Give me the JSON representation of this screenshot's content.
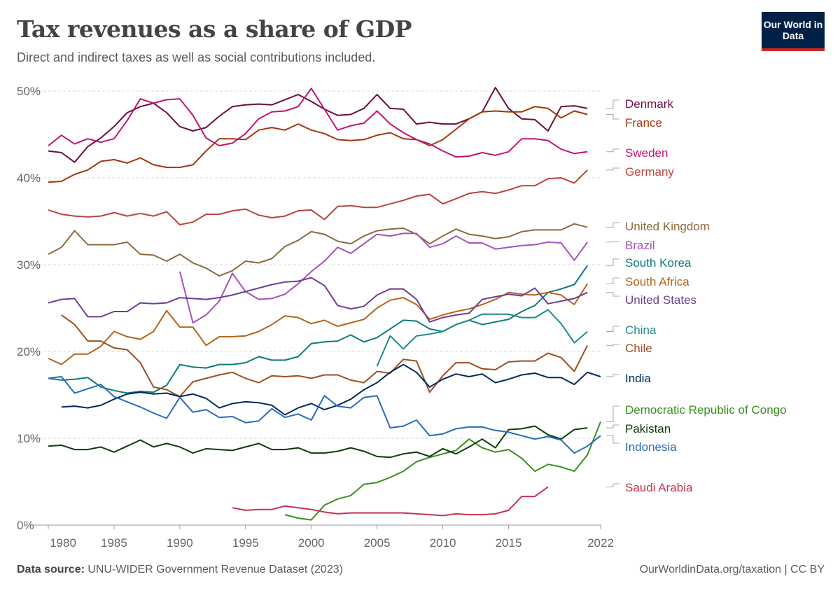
{
  "header": {
    "title": "Tax revenues as a share of GDP",
    "subtitle": "Direct and indirect taxes as well as social contributions included.",
    "logo_text": "Our World in Data"
  },
  "footer": {
    "source_label": "Data source:",
    "source_text": "UNU-WIDER Government Revenue Dataset (2023)",
    "url_license": "OurWorldinData.org/taxation | CC BY"
  },
  "chart_data": {
    "type": "line",
    "title": "Tax revenues as a share of GDP",
    "subtitle": "Direct and indirect taxes as well as social contributions included.",
    "xlim": [
      1980,
      2022
    ],
    "ylim": [
      0,
      50
    ],
    "x_ticks": [
      "1980",
      "1985",
      "1990",
      "1995",
      "2000",
      "2005",
      "2010",
      "2015",
      "2022"
    ],
    "y_ticks": [
      "0%",
      "10%",
      "20%",
      "30%",
      "40%",
      "50%"
    ],
    "grid": "horizontal dashed",
    "legend": "right, inline labels",
    "series": [
      {
        "name": "Denmark",
        "color": "#6b0d3f",
        "start_year": 1980,
        "values": [
          43.1,
          42.9,
          41.8,
          43.6,
          44.6,
          45.9,
          47.5,
          48.2,
          48.6,
          47.5,
          45.9,
          45.4,
          45.8,
          47.1,
          48.2,
          48.4,
          48.5,
          48.4,
          49.0,
          49.6,
          48.8,
          47.9,
          47.2,
          47.3,
          48.0,
          49.6,
          48.0,
          47.9,
          46.2,
          46.4,
          46.2,
          46.2,
          46.8,
          47.6,
          50.4,
          48.0,
          46.8,
          46.7,
          45.4,
          48.2,
          48.3,
          48.0
        ]
      },
      {
        "name": "France",
        "color": "#a2370c",
        "start_year": 1980,
        "values": [
          39.5,
          39.6,
          40.4,
          40.9,
          41.9,
          42.1,
          41.7,
          42.3,
          41.5,
          41.2,
          41.2,
          41.5,
          43.1,
          44.5,
          44.5,
          44.4,
          45.5,
          45.8,
          45.5,
          46.2,
          45.5,
          45.1,
          44.4,
          44.3,
          44.4,
          44.9,
          45.2,
          44.5,
          44.4,
          43.7,
          44.4,
          45.6,
          46.8,
          47.6,
          47.7,
          47.6,
          47.6,
          48.2,
          48.0,
          46.9,
          47.7,
          47.3
        ]
      },
      {
        "name": "Sweden",
        "color": "#c1156f",
        "start_year": 1980,
        "values": [
          43.7,
          44.9,
          43.9,
          44.5,
          44.1,
          44.5,
          46.6,
          49.1,
          48.6,
          49.0,
          49.1,
          47.2,
          44.6,
          43.7,
          44.0,
          45.1,
          46.8,
          47.6,
          47.7,
          48.2,
          50.3,
          47.9,
          45.5,
          46.0,
          46.3,
          47.7,
          46.2,
          45.2,
          44.4,
          43.9,
          43.1,
          42.4,
          42.5,
          42.9,
          42.6,
          43.0,
          44.5,
          44.5,
          44.3,
          43.3,
          42.8,
          43.0
        ]
      },
      {
        "name": "Germany",
        "color": "#b9433c",
        "start_year": 1980,
        "values": [
          36.3,
          35.8,
          35.6,
          35.5,
          35.6,
          36.0,
          35.6,
          35.9,
          35.6,
          36.1,
          34.6,
          34.9,
          35.8,
          35.8,
          36.2,
          36.4,
          35.7,
          35.4,
          35.6,
          36.2,
          36.3,
          35.2,
          36.7,
          36.8,
          36.6,
          36.6,
          37.0,
          37.4,
          37.9,
          38.1,
          37.0,
          37.6,
          38.2,
          38.4,
          38.2,
          38.6,
          39.1,
          39.1,
          39.9,
          40.0,
          39.4,
          40.9
        ]
      },
      {
        "name": "United Kingdom",
        "color": "#8c6a3a",
        "start_year": 1980,
        "values": [
          31.2,
          32.0,
          33.9,
          32.3,
          32.3,
          32.3,
          32.6,
          31.2,
          31.1,
          30.4,
          31.2,
          30.2,
          29.6,
          28.7,
          29.3,
          30.4,
          30.2,
          30.7,
          32.1,
          32.8,
          33.8,
          33.5,
          32.7,
          32.4,
          33.3,
          33.9,
          34.1,
          34.2,
          33.5,
          32.4,
          33.3,
          34.1,
          33.5,
          33.3,
          33.0,
          33.2,
          33.8,
          34.0,
          34.0,
          34.0,
          34.7,
          34.3
        ]
      },
      {
        "name": "Brazil",
        "color": "#a652ba",
        "start_year": 1990,
        "values": [
          29.2,
          23.3,
          24.2,
          25.8,
          29.0,
          26.9,
          26.0,
          26.1,
          26.6,
          27.8,
          29.2,
          30.4,
          32.0,
          31.3,
          32.4,
          33.5,
          33.3,
          33.6,
          33.6,
          32.0,
          32.4,
          33.3,
          32.5,
          32.5,
          31.8,
          32.0,
          32.2,
          32.3,
          32.6,
          32.5,
          30.5,
          32.6
        ]
      },
      {
        "name": "South Korea",
        "color": "#0e7a78",
        "start_year": 1980,
        "values": [
          16.9,
          16.7,
          16.8,
          17.0,
          15.9,
          15.5,
          15.2,
          15.4,
          15.3,
          16.1,
          18.5,
          18.2,
          18.1,
          18.5,
          18.5,
          18.7,
          19.4,
          19.0,
          19.0,
          19.4,
          20.9,
          21.1,
          21.2,
          21.9,
          21.1,
          21.6,
          22.6,
          23.6,
          23.5,
          22.6,
          22.3,
          23.1,
          23.6,
          23.1,
          23.4,
          23.7,
          24.6,
          25.3,
          26.8,
          27.2,
          27.7,
          29.9
        ]
      },
      {
        "name": "South Africa",
        "color": "#b36419",
        "start_year": 1980,
        "values": [
          19.2,
          18.5,
          19.7,
          19.7,
          20.6,
          22.3,
          21.7,
          21.4,
          22.3,
          24.7,
          22.8,
          22.8,
          20.7,
          21.7,
          21.7,
          21.8,
          22.3,
          23.1,
          24.1,
          23.9,
          23.2,
          23.6,
          22.9,
          23.3,
          23.7,
          25.0,
          25.9,
          26.2,
          25.4,
          23.7,
          24.2,
          24.6,
          24.9,
          25.4,
          26.0,
          26.8,
          26.6,
          26.5,
          26.8,
          26.5,
          25.4,
          27.8
        ]
      },
      {
        "name": "United States",
        "color": "#6d3e91",
        "start_year": 1980,
        "values": [
          25.6,
          26.0,
          26.1,
          24.0,
          24.0,
          24.6,
          24.6,
          25.6,
          25.5,
          25.6,
          26.2,
          26.1,
          26.0,
          26.2,
          26.5,
          26.9,
          27.3,
          27.7,
          28.0,
          28.1,
          28.5,
          27.6,
          25.3,
          24.9,
          25.2,
          26.5,
          27.2,
          27.2,
          26.0,
          23.4,
          23.9,
          24.2,
          24.4,
          26.0,
          26.3,
          26.6,
          26.4,
          27.3,
          25.5,
          25.8,
          26.1,
          26.8
        ]
      },
      {
        "name": "China",
        "color": "#1e8a8c",
        "start_year": 2005,
        "values": [
          18.3,
          21.8,
          20.3,
          21.8,
          22.0,
          22.3,
          23.1,
          23.6,
          24.3,
          24.3,
          24.3,
          23.9,
          23.9,
          24.8,
          23.2,
          21.0,
          22.3
        ]
      },
      {
        "name": "Chile",
        "color": "#9b4f23",
        "start_year": 1981,
        "values": [
          24.2,
          23.1,
          21.2,
          21.2,
          20.4,
          20.2,
          18.7,
          15.9,
          15.6,
          14.8,
          16.5,
          16.9,
          17.3,
          17.6,
          16.9,
          16.4,
          17.2,
          17.1,
          17.2,
          16.9,
          17.3,
          17.3,
          16.7,
          16.4,
          17.7,
          17.5,
          19.1,
          18.9,
          15.3,
          17.2,
          18.7,
          18.7,
          18.0,
          17.9,
          18.8,
          18.9,
          18.9,
          19.8,
          19.3,
          17.7,
          20.7
        ]
      },
      {
        "name": "India",
        "color": "#00295b",
        "start_year": 1981,
        "values": [
          13.6,
          13.7,
          13.5,
          13.8,
          14.5,
          15.1,
          15.3,
          15.1,
          15.2,
          14.8,
          15.1,
          14.6,
          13.5,
          14.0,
          14.2,
          14.1,
          13.8,
          12.7,
          13.5,
          14.0,
          13.3,
          13.8,
          14.5,
          15.6,
          16.4,
          17.6,
          18.5,
          17.6,
          15.9,
          16.8,
          17.4,
          17.1,
          17.4,
          16.4,
          16.8,
          17.3,
          17.5,
          17.0,
          17.0,
          16.2,
          17.6,
          17.1
        ]
      },
      {
        "name": "Democratic Republic of Congo",
        "color": "#3a8e1f",
        "start_year": 1998,
        "values": [
          1.2,
          0.8,
          0.6,
          2.3,
          3.0,
          3.4,
          4.7,
          4.9,
          5.5,
          6.2,
          7.3,
          7.8,
          8.2,
          8.6,
          9.9,
          8.9,
          8.4,
          8.7,
          7.7,
          6.2,
          7.0,
          6.7,
          6.2,
          8.1,
          11.9
        ]
      },
      {
        "name": "Pakistan",
        "color": "#0b3d0b",
        "start_year": 1980,
        "values": [
          9.1,
          9.2,
          8.7,
          8.7,
          9.0,
          8.4,
          9.1,
          9.8,
          9.0,
          9.4,
          9.0,
          8.3,
          8.8,
          8.7,
          8.6,
          9.0,
          9.4,
          8.7,
          8.7,
          8.9,
          8.3,
          8.3,
          8.5,
          8.9,
          8.5,
          7.9,
          7.8,
          8.2,
          8.4,
          7.9,
          8.8,
          8.2,
          9.0,
          9.9,
          8.9,
          11.0,
          11.1,
          11.4,
          10.4,
          9.9,
          11.0,
          11.2
        ]
      },
      {
        "name": "Indonesia",
        "color": "#286bbb",
        "start_year": 1980,
        "values": [
          16.9,
          17.1,
          15.2,
          15.7,
          16.2,
          14.8,
          14.2,
          13.6,
          12.9,
          12.3,
          14.7,
          13.0,
          13.3,
          12.4,
          12.5,
          11.8,
          12.0,
          13.4,
          12.4,
          12.8,
          12.1,
          14.9,
          13.7,
          13.5,
          14.7,
          14.9,
          11.2,
          11.4,
          12.1,
          10.3,
          10.5,
          11.1,
          11.3,
          11.3,
          10.9,
          10.7,
          10.3,
          9.9,
          10.2,
          9.8,
          8.3,
          9.1,
          10.3
        ]
      },
      {
        "name": "Saudi Arabia",
        "color": "#c63350",
        "start_year": 1994,
        "values": [
          2.0,
          1.7,
          1.8,
          1.8,
          2.2,
          2.0,
          1.8,
          1.5,
          1.3,
          1.4,
          1.4,
          1.4,
          1.4,
          1.4,
          1.3,
          1.2,
          1.1,
          1.3,
          1.2,
          1.2,
          1.3,
          1.7,
          3.3,
          3.3,
          4.4
        ]
      }
    ]
  }
}
